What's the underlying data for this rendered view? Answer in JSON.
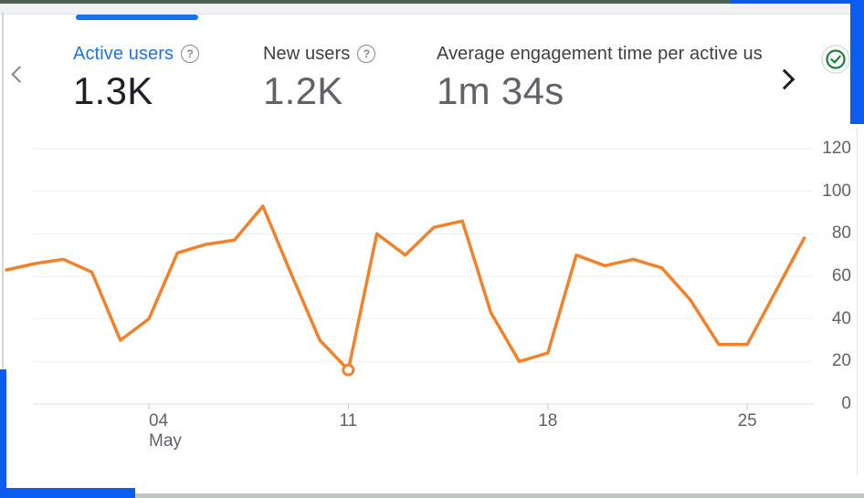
{
  "colors": {
    "accent_blue": "#1a73e8",
    "frame_blue": "#0b5cf0",
    "line_orange": "#F2822A",
    "top_strip_dark": "#4e6054",
    "bottom_strip_gray": "#bfc6c0",
    "text_primary": "#202124",
    "text_secondary": "#5f6368",
    "grid_line": "#edeef0",
    "axis_base_line": "#dadce0"
  },
  "icons": {
    "chevron_left": "chevron-left-css-shape",
    "chevron_right": "chevron-right-css-shape",
    "help_glyph": "?",
    "check_glyph": "check-in-circle-svg"
  },
  "metrics": [
    {
      "label": "Active users",
      "value": "1.3K",
      "selected": true,
      "has_help_icon": true
    },
    {
      "label": "New users",
      "value": "1.2K",
      "selected": false,
      "has_help_icon": true
    },
    {
      "label": "Average engagement time per active us",
      "value": "1m 34s",
      "selected": false,
      "has_help_icon": false
    }
  ],
  "chart_data": {
    "type": "line",
    "x": [
      "Apr 29",
      "Apr 30",
      "May 1",
      "May 2",
      "May 3",
      "May 4",
      "May 5",
      "May 6",
      "May 7",
      "May 8",
      "May 9",
      "May 10",
      "May 11",
      "May 12",
      "May 13",
      "May 14",
      "May 15",
      "May 16",
      "May 17",
      "May 18",
      "May 19",
      "May 20",
      "May 21",
      "May 22",
      "May 23",
      "May 24",
      "May 25",
      "May 26",
      "May 27"
    ],
    "series": [
      {
        "name": "Active users",
        "values": [
          63,
          66,
          68,
          62,
          30,
          40,
          71,
          75,
          77,
          93,
          61,
          30,
          16,
          80,
          70,
          83,
          86,
          43,
          20,
          24,
          70,
          65,
          68,
          64,
          49,
          28,
          28,
          53,
          78
        ]
      }
    ],
    "highlight_index": 12,
    "x_ticks": [
      {
        "index": 5,
        "label": "04",
        "sublabel": "May"
      },
      {
        "index": 12,
        "label": "11"
      },
      {
        "index": 19,
        "label": "18"
      },
      {
        "index": 26,
        "label": "25"
      }
    ],
    "y_ticks": [
      0,
      20,
      40,
      60,
      80,
      100,
      120
    ],
    "ylim": [
      0,
      130
    ],
    "grid": "horizontal",
    "legend": "none"
  }
}
